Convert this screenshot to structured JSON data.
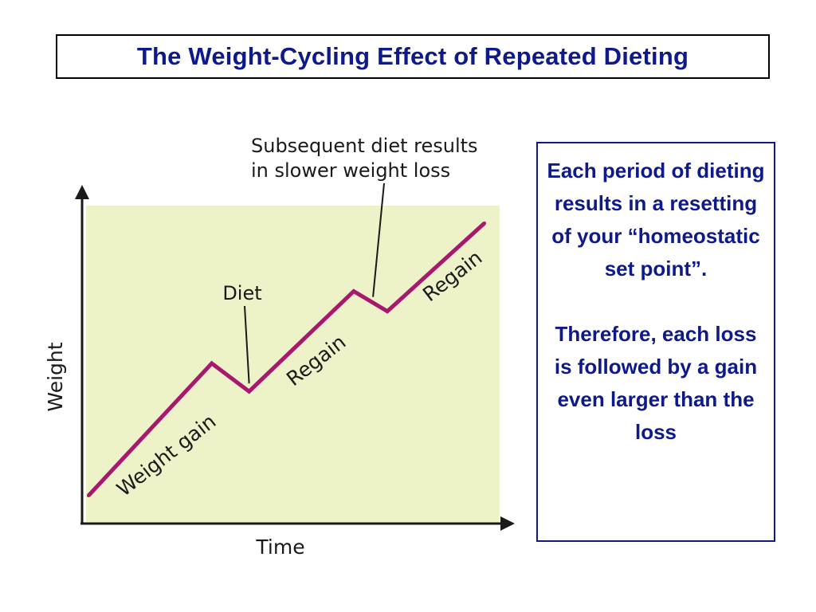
{
  "title": "The Weight-Cycling Effect of Repeated Dieting",
  "info_box": {
    "paragraph_1": "Each period of dieting results in a resetting of your “homeostatic set point”.",
    "paragraph_2": "Therefore, each loss is followed by a gain even larger than the loss"
  },
  "chart_data": {
    "type": "line",
    "xlabel": "Time",
    "ylabel": "Weight",
    "x": [
      0,
      1.65,
      2.15,
      3.55,
      4.0,
      5.3
    ],
    "y": [
      0,
      1.65,
      1.3,
      2.55,
      2.3,
      3.4
    ],
    "xlim": [
      0,
      5.3
    ],
    "ylim": [
      0,
      3.4
    ],
    "series_color": "#a8186f",
    "plot_background": "#eef2c8",
    "segment_labels": [
      "Weight gain",
      "Regain",
      "Regain"
    ],
    "annotations": [
      {
        "text": "Diet",
        "points_to_index": 2
      },
      {
        "lines": [
          "Subsequent diet results",
          "in slower weight loss"
        ],
        "points_to_index": 4
      }
    ]
  }
}
